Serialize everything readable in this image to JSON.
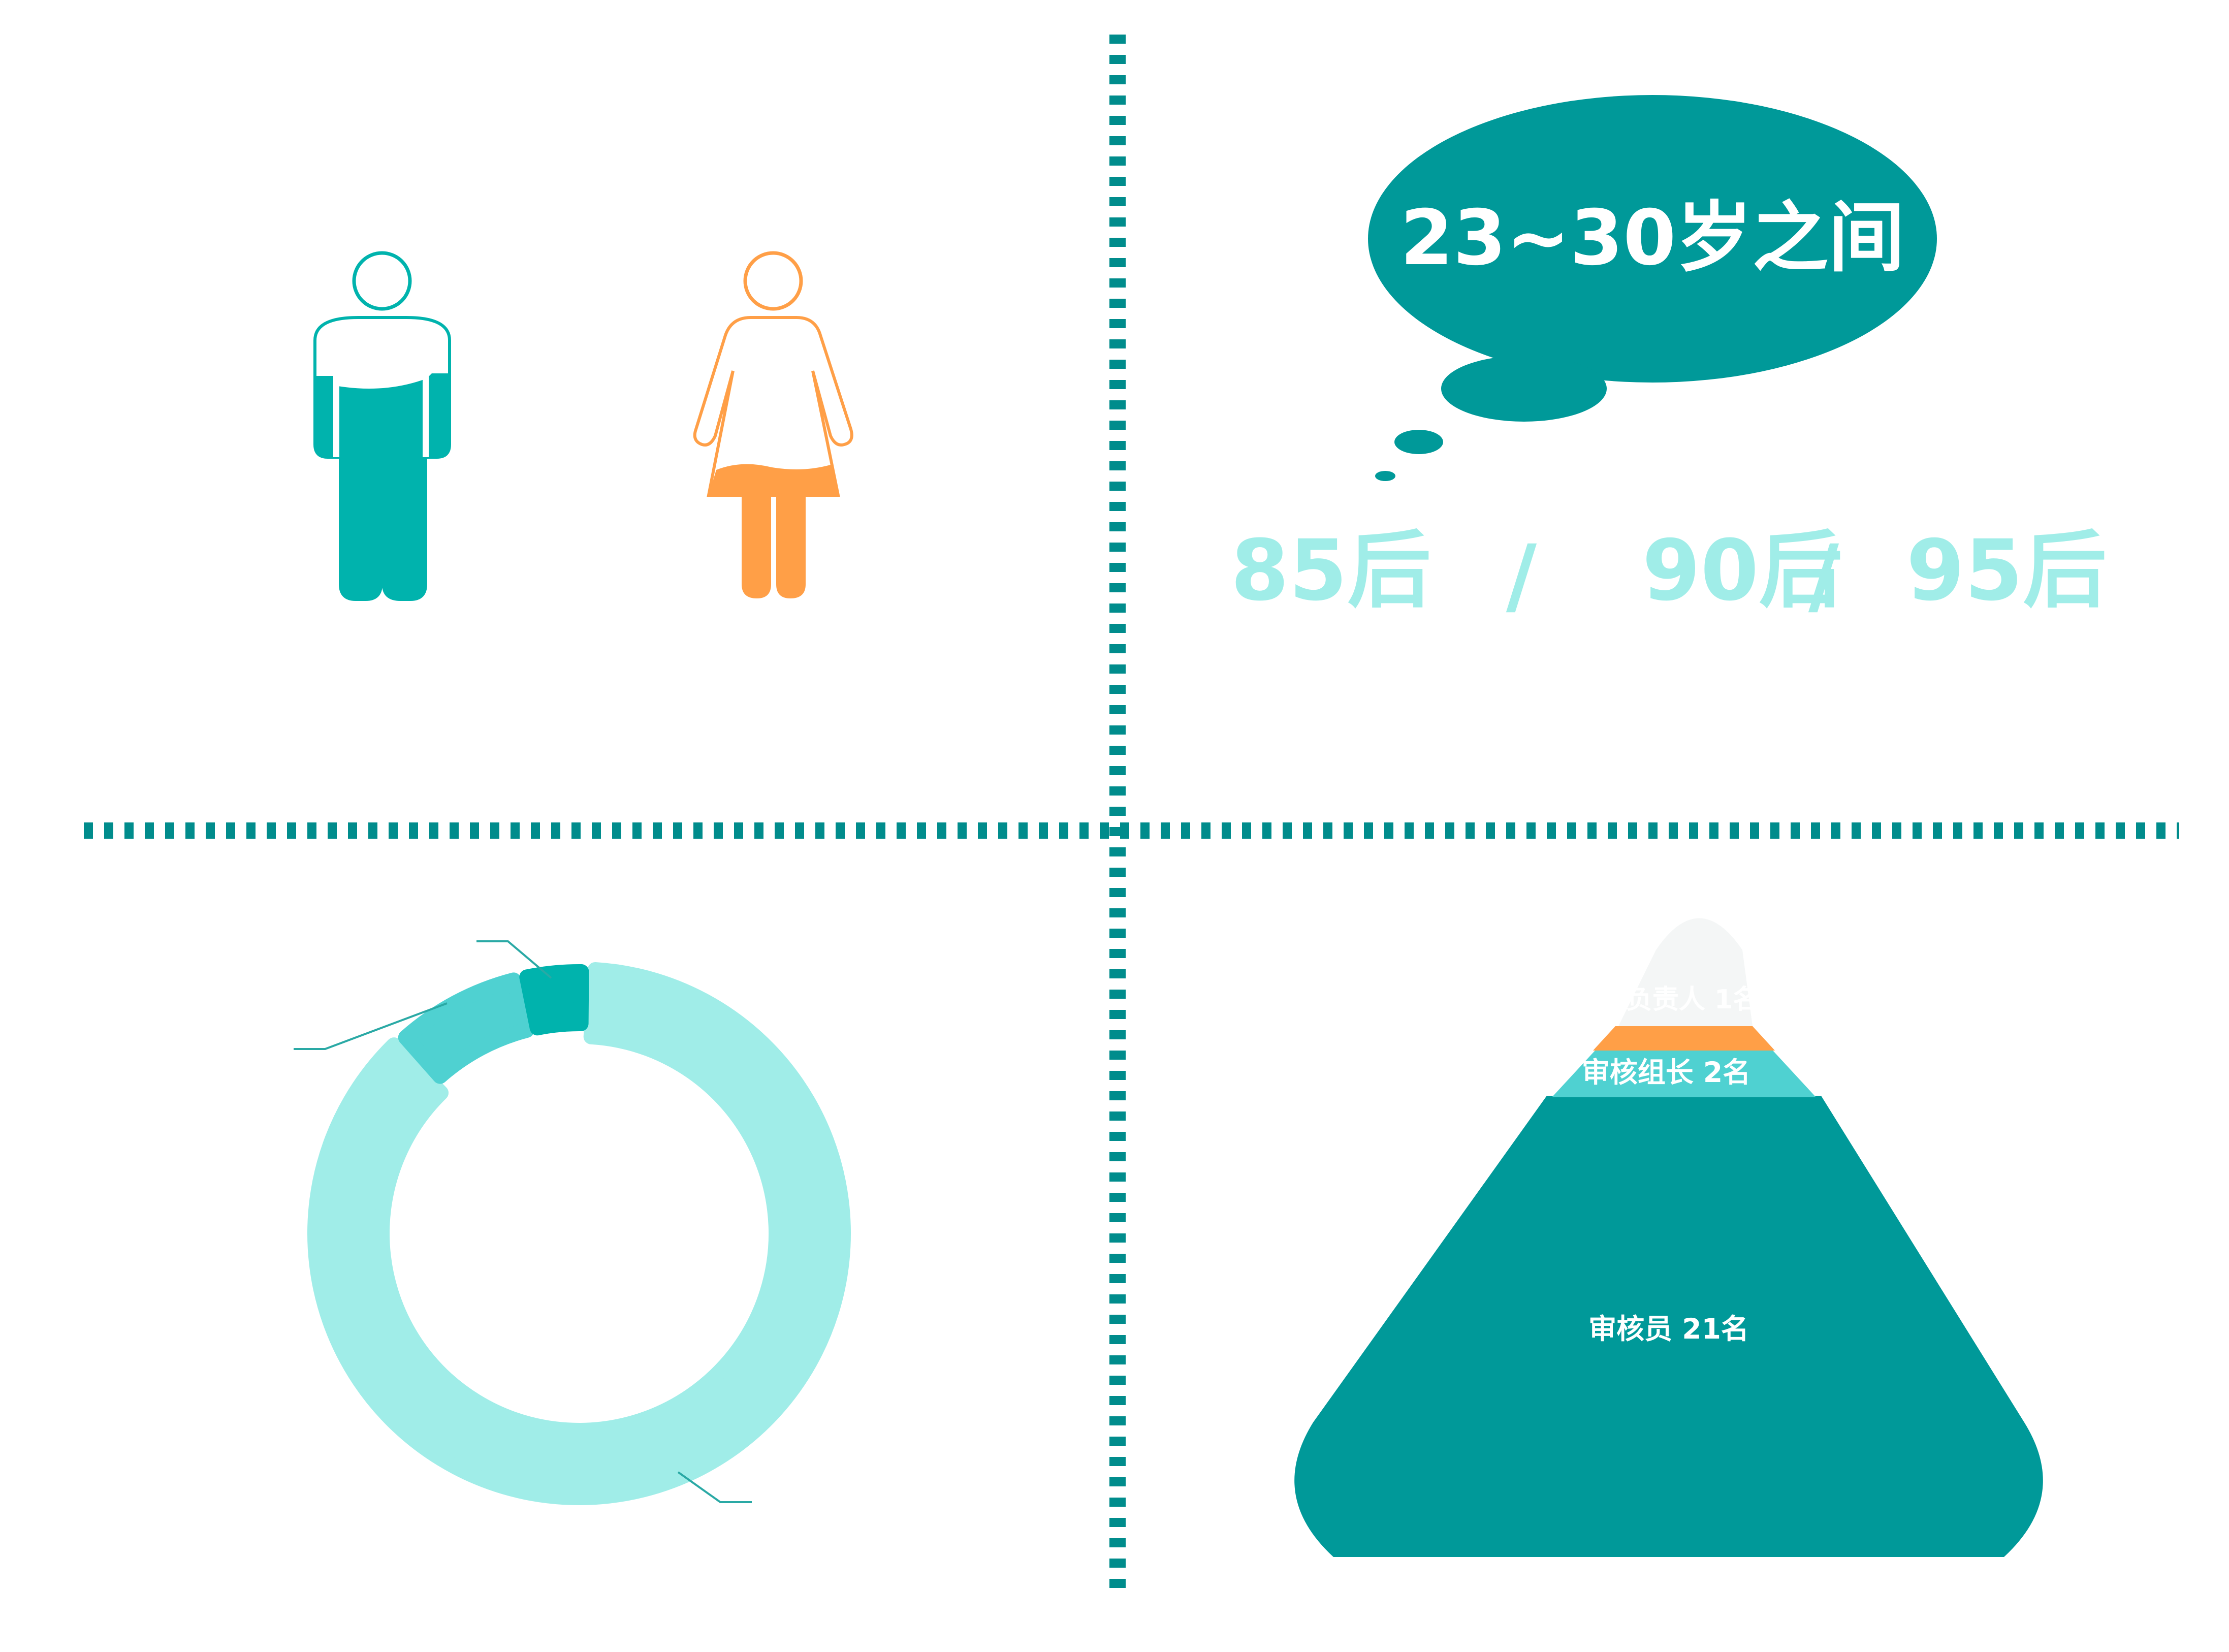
{
  "colors": {
    "teal_dark": "#009999",
    "teal_mid": "#00b3ad",
    "teal_light": "#4fd1d1",
    "teal_pale": "#a0ede8",
    "orange": "#ff9f47",
    "divider": "#008c8c",
    "pyramid_top": "#f4f6f6"
  },
  "age": {
    "bubble_text": "23~30岁之间",
    "generations": [
      "85后",
      "/",
      "90后",
      "/",
      "95后"
    ]
  },
  "gender": {
    "icons": [
      "male-person-icon",
      "female-person-icon"
    ]
  },
  "pyramid": {
    "tiers": [
      {
        "label": "审核负责人 1名"
      },
      {
        "label": "审核组长 2名"
      },
      {
        "label": "审核员 21名"
      }
    ]
  },
  "chart_data": {
    "type": "pie",
    "title": "",
    "categories": [
      "审核员",
      "审核组长",
      "审核负责人"
    ],
    "values": [
      21,
      2,
      1
    ],
    "colors": [
      "#a0ede8",
      "#4fd1d1",
      "#00b3ad"
    ]
  }
}
